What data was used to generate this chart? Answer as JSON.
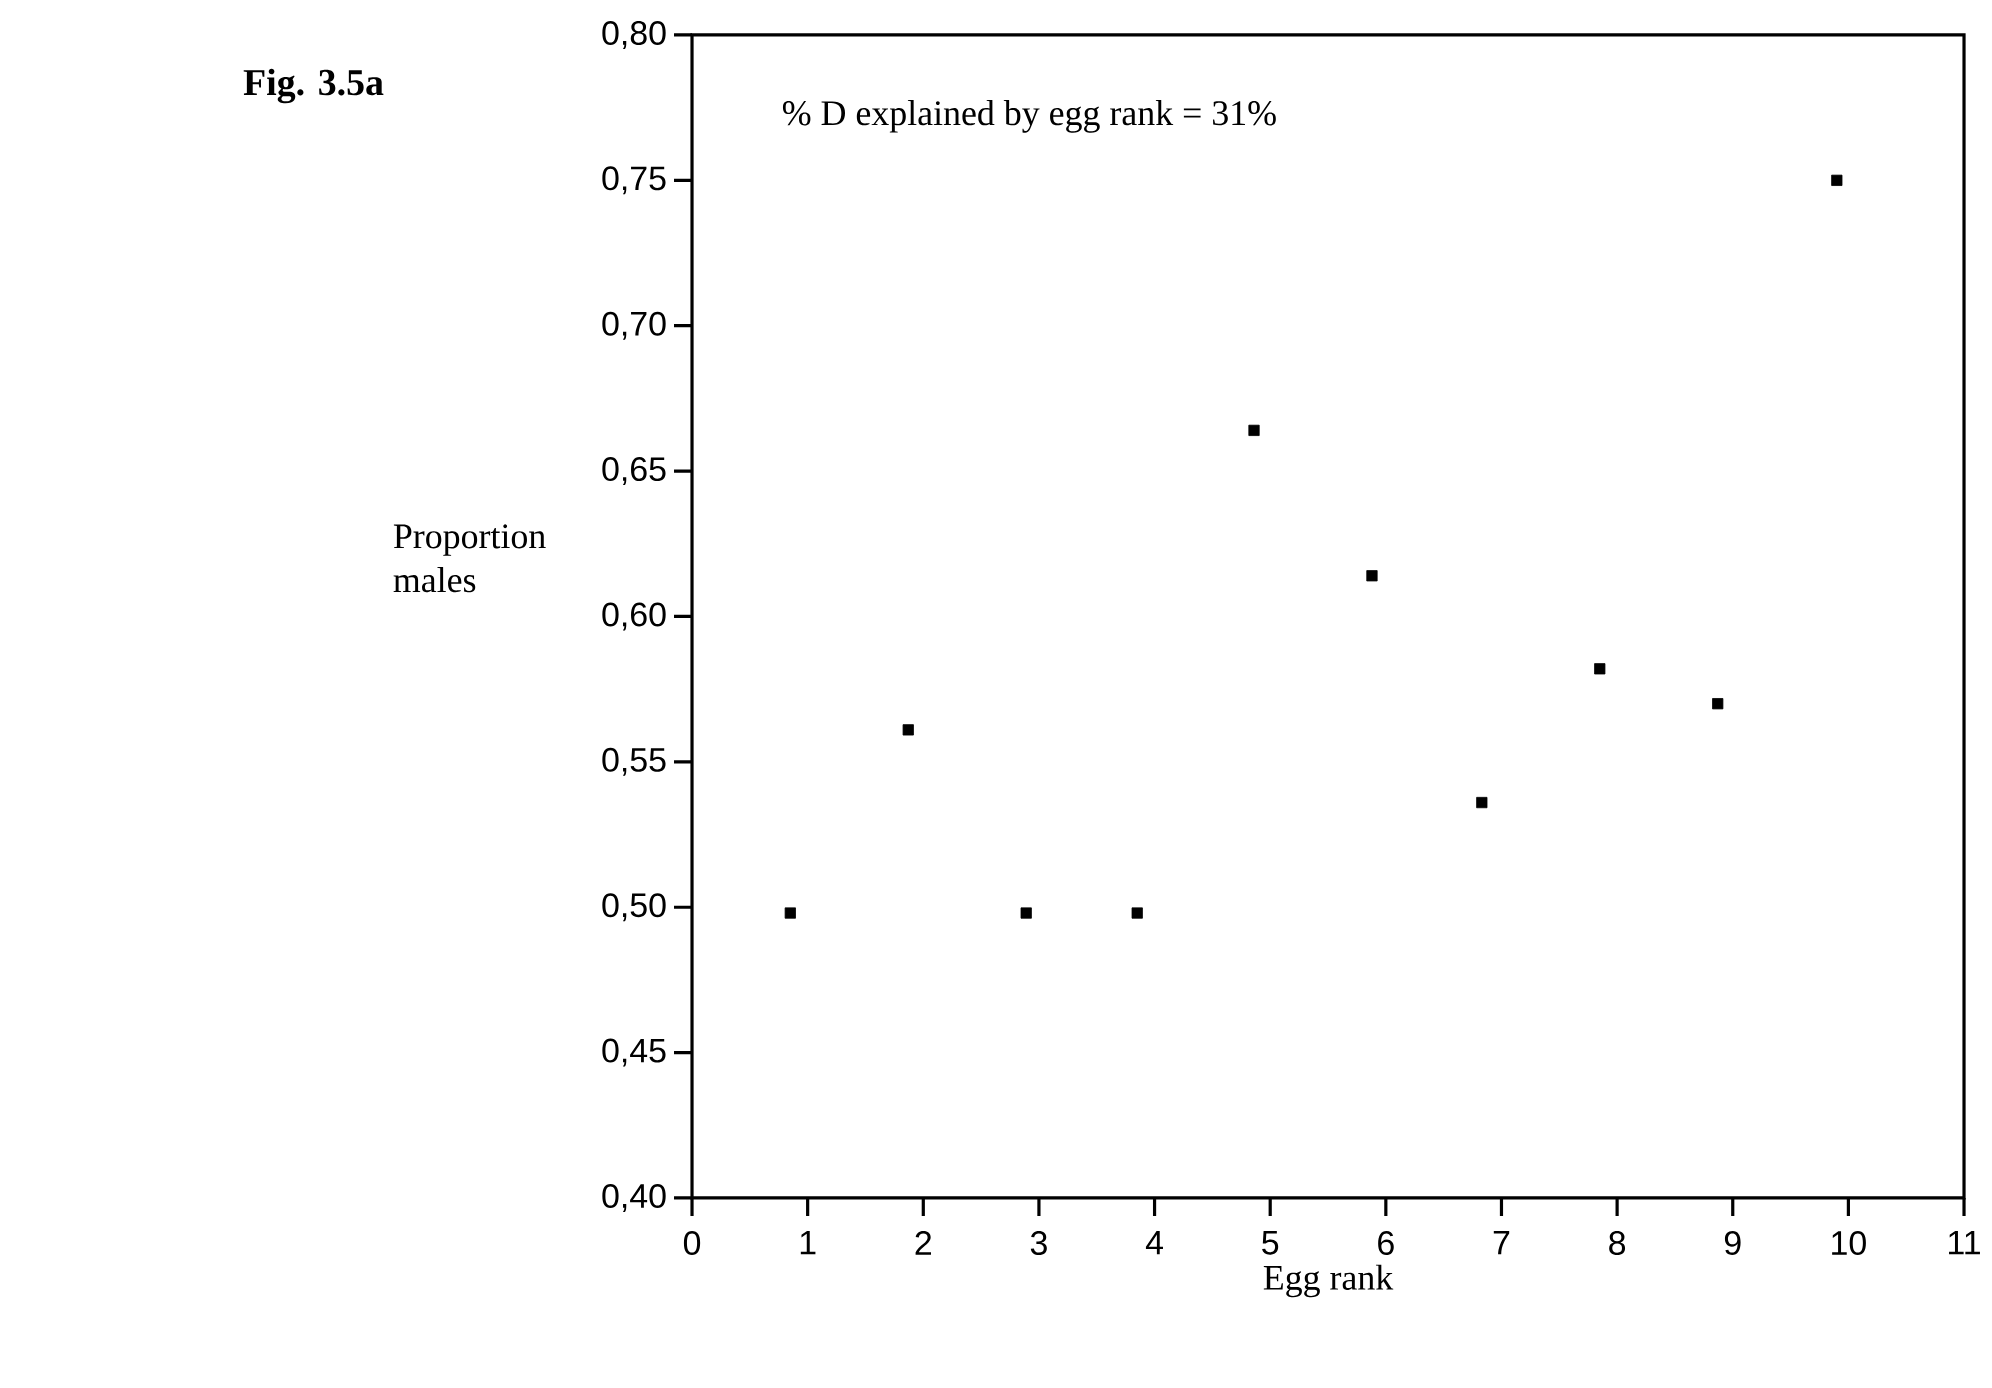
{
  "chart_data": {
    "type": "scatter",
    "title": "Fig. 3.5a",
    "xlabel": "Egg rank",
    "ylabel": "Proportion males",
    "annotations": [
      "% D explained by egg rank = 31%"
    ],
    "x": [
      0.85,
      1.87,
      2.89,
      3.85,
      4.86,
      5.88,
      6.83,
      7.85,
      8.87,
      9.9
    ],
    "series": [
      {
        "color": "#000000",
        "values": [
          0.498,
          0.561,
          0.498,
          0.498,
          0.664,
          0.614,
          0.536,
          0.582,
          0.57,
          0.75
        ]
      }
    ],
    "xlim": [
      0,
      11
    ],
    "xticks": [
      0,
      1,
      2,
      3,
      4,
      5,
      6,
      7,
      8,
      9,
      10,
      11
    ],
    "ylim": [
      0.4,
      0.8
    ],
    "yticks": [
      {
        "value": 0.4,
        "label": "0,40"
      },
      {
        "value": 0.45,
        "label": "0,45"
      },
      {
        "value": 0.5,
        "label": "0,50"
      },
      {
        "value": 0.55,
        "label": "0,55"
      },
      {
        "value": 0.6,
        "label": "0,60"
      },
      {
        "value": 0.65,
        "label": "0,65"
      },
      {
        "value": 0.7,
        "label": "0,70"
      },
      {
        "value": 0.75,
        "label": "0,75"
      },
      {
        "value": 0.8,
        "label": "0,80"
      }
    ],
    "marker": "square",
    "grid": false
  }
}
